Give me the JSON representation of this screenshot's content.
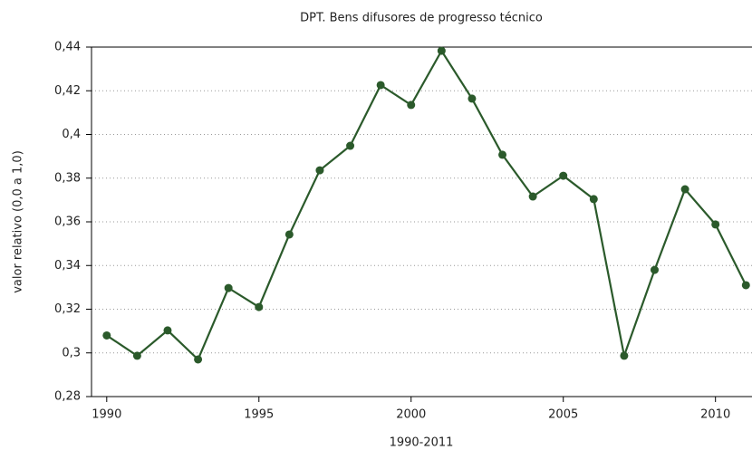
{
  "chart_data": {
    "type": "line",
    "title": "DPT. Bens difusores de progresso técnico",
    "xlabel": "1990-2011",
    "ylabel": "valor relativo (0,0 a 1,0)",
    "x": [
      1990,
      1991,
      1992,
      1993,
      1994,
      1995,
      1996,
      1997,
      1998,
      1999,
      2000,
      2001,
      2002,
      2003,
      2004,
      2005,
      2006,
      2007,
      2008,
      2009,
      2010,
      2011
    ],
    "series": [
      {
        "color": "#2b5a2b",
        "values": [
          0.308,
          0.2987,
          0.3103,
          0.297,
          0.3297,
          0.321,
          0.3542,
          0.3836,
          0.3948,
          0.4226,
          0.4135,
          0.4383,
          0.4164,
          0.3907,
          0.3716,
          0.3811,
          0.3704,
          0.2987,
          0.338,
          0.3749,
          0.3588,
          0.331
        ]
      }
    ],
    "xlim": [
      1989.5,
      2011.2
    ],
    "xticks": [
      1990,
      1995,
      2000,
      2005,
      2010
    ],
    "ylim": [
      0.28,
      0.44
    ],
    "yticks": [
      {
        "value": 0.28,
        "label": "0,28"
      },
      {
        "value": 0.3,
        "label": "0,3"
      },
      {
        "value": 0.32,
        "label": "0,32"
      },
      {
        "value": 0.34,
        "label": "0,34"
      },
      {
        "value": 0.36,
        "label": "0,36"
      },
      {
        "value": 0.38,
        "label": "0,38"
      },
      {
        "value": 0.4,
        "label": "0,4"
      },
      {
        "value": 0.42,
        "label": "0,42"
      },
      {
        "value": 0.44,
        "label": "0,44"
      }
    ],
    "grid": true
  }
}
